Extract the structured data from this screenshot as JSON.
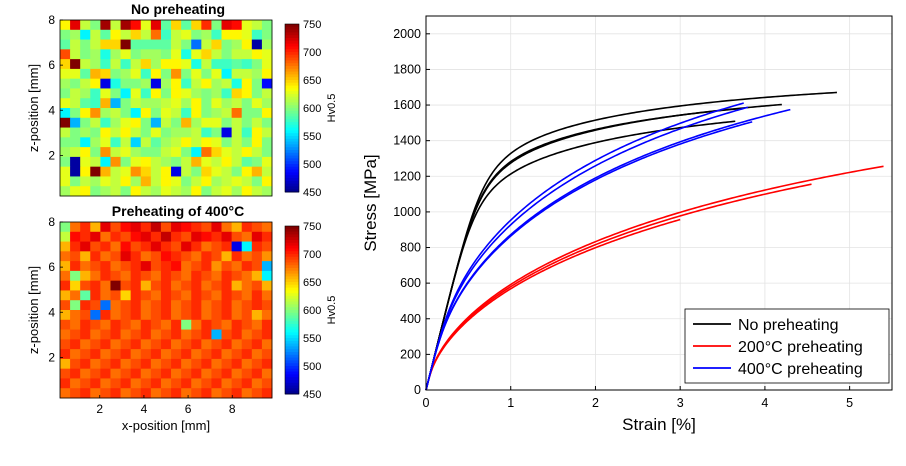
{
  "chart_data": [
    {
      "type": "heatmap",
      "title": "No preheating",
      "xlabel": "",
      "ylabel": "z-position [mm]",
      "xlim": [
        0.2,
        9.8
      ],
      "ylim": [
        0.2,
        8.0
      ],
      "xticks": [],
      "yticks": [
        2,
        4,
        6,
        8
      ],
      "colorbar": {
        "label": "Hv0.5",
        "range": [
          450,
          750
        ],
        "ticks": [
          450,
          500,
          550,
          600,
          650,
          700,
          750
        ]
      },
      "colormap": "jet",
      "grid_shape": [
        18,
        21
      ],
      "values": [
        [
          640,
          720,
          620,
          600,
          740,
          620,
          740,
          710,
          630,
          720,
          590,
          650,
          590,
          650,
          700,
          600,
          720,
          710,
          630,
          620,
          600
        ],
        [
          600,
          610,
          560,
          620,
          590,
          640,
          620,
          650,
          620,
          680,
          580,
          620,
          630,
          600,
          610,
          580,
          640,
          640,
          630,
          580,
          600
        ],
        [
          590,
          620,
          600,
          620,
          650,
          650,
          760,
          590,
          590,
          590,
          590,
          620,
          600,
          520,
          620,
          650,
          600,
          610,
          640,
          460,
          610
        ],
        [
          690,
          620,
          600,
          610,
          570,
          610,
          630,
          600,
          610,
          610,
          600,
          630,
          570,
          630,
          650,
          620,
          600,
          620,
          620,
          640,
          630
        ],
        [
          650,
          760,
          620,
          610,
          580,
          620,
          580,
          620,
          650,
          610,
          640,
          640,
          630,
          570,
          620,
          580,
          580,
          590,
          580,
          600,
          630
        ],
        [
          630,
          630,
          590,
          660,
          650,
          600,
          610,
          630,
          580,
          640,
          600,
          670,
          600,
          630,
          600,
          630,
          560,
          620,
          620,
          610,
          640
        ],
        [
          610,
          600,
          620,
          640,
          480,
          570,
          600,
          600,
          610,
          480,
          610,
          640,
          580,
          620,
          640,
          610,
          620,
          570,
          640,
          600,
          490
        ],
        [
          600,
          620,
          610,
          580,
          630,
          600,
          560,
          630,
          580,
          640,
          600,
          640,
          630,
          610,
          600,
          610,
          580,
          650,
          640,
          600,
          620
        ],
        [
          630,
          620,
          590,
          580,
          660,
          540,
          600,
          620,
          610,
          610,
          620,
          630,
          610,
          640,
          600,
          630,
          610,
          620,
          600,
          630,
          610
        ],
        [
          560,
          600,
          640,
          670,
          610,
          620,
          600,
          560,
          640,
          600,
          630,
          620,
          580,
          640,
          600,
          610,
          620,
          680,
          600,
          600,
          640
        ],
        [
          750,
          540,
          600,
          620,
          580,
          610,
          630,
          640,
          600,
          540,
          620,
          600,
          660,
          610,
          630,
          630,
          600,
          620,
          600,
          620,
          600
        ],
        [
          620,
          600,
          610,
          600,
          640,
          620,
          640,
          620,
          600,
          630,
          600,
          610,
          610,
          620,
          580,
          600,
          480,
          620,
          580,
          640,
          620
        ],
        [
          600,
          600,
          560,
          610,
          630,
          580,
          620,
          550,
          620,
          590,
          610,
          620,
          640,
          620,
          640,
          630,
          600,
          620,
          600,
          640,
          600
        ],
        [
          610,
          620,
          640,
          600,
          670,
          620,
          630,
          610,
          600,
          600,
          620,
          630,
          600,
          560,
          680,
          650,
          630,
          620,
          640,
          620,
          600
        ],
        [
          600,
          460,
          630,
          620,
          560,
          670,
          600,
          630,
          640,
          620,
          610,
          600,
          620,
          660,
          630,
          620,
          640,
          620,
          590,
          600,
          630
        ],
        [
          630,
          460,
          640,
          750,
          660,
          620,
          630,
          670,
          650,
          620,
          640,
          480,
          620,
          600,
          650,
          630,
          620,
          600,
          640,
          660,
          620
        ],
        [
          630,
          600,
          620,
          610,
          630,
          620,
          640,
          610,
          660,
          620,
          640,
          630,
          600,
          620,
          640,
          610,
          620,
          630,
          620,
          600,
          640
        ],
        [
          610,
          630,
          640,
          600,
          610,
          620,
          600,
          640,
          620,
          610,
          630,
          620,
          610,
          640,
          600,
          620,
          630,
          610,
          640,
          620,
          610
        ]
      ]
    },
    {
      "type": "heatmap",
      "title": "Preheating of 400°C",
      "xlabel": "x-position [mm]",
      "ylabel": "z-position [mm]",
      "xlim": [
        0.2,
        9.8
      ],
      "ylim": [
        0.2,
        8.0
      ],
      "xticks": [
        2,
        4,
        6,
        8
      ],
      "yticks": [
        2,
        4,
        6,
        8
      ],
      "colorbar": {
        "label": "Hv0.5",
        "range": [
          450,
          750
        ],
        "ticks": [
          450,
          500,
          550,
          600,
          650,
          700,
          750
        ]
      },
      "colormap": "jet",
      "grid_shape": [
        18,
        21
      ],
      "values": [
        [
          600,
          680,
          700,
          660,
          720,
          690,
          710,
          720,
          700,
          730,
          690,
          720,
          710,
          700,
          690,
          720,
          680,
          660,
          700,
          690,
          680
        ],
        [
          620,
          710,
          700,
          720,
          680,
          700,
          690,
          710,
          720,
          700,
          730,
          700,
          690,
          720,
          710,
          700,
          720,
          690,
          680,
          720,
          700
        ],
        [
          660,
          700,
          720,
          690,
          700,
          680,
          710,
          690,
          700,
          720,
          700,
          690,
          720,
          700,
          680,
          690,
          700,
          480,
          560,
          700,
          690
        ],
        [
          680,
          690,
          660,
          700,
          680,
          690,
          720,
          700,
          680,
          690,
          710,
          700,
          690,
          680,
          700,
          690,
          660,
          700,
          680,
          690,
          670
        ],
        [
          660,
          700,
          680,
          690,
          700,
          680,
          690,
          700,
          720,
          690,
          700,
          710,
          680,
          690,
          700,
          670,
          690,
          680,
          700,
          690,
          540
        ],
        [
          680,
          600,
          660,
          680,
          700,
          690,
          680,
          700,
          690,
          680,
          700,
          690,
          680,
          700,
          690,
          680,
          700,
          690,
          680,
          660,
          560
        ],
        [
          700,
          650,
          690,
          700,
          680,
          760,
          690,
          700,
          660,
          690,
          700,
          680,
          690,
          700,
          680,
          690,
          700,
          660,
          680,
          690,
          660
        ],
        [
          660,
          680,
          590,
          700,
          680,
          690,
          650,
          700,
          690,
          680,
          700,
          690,
          680,
          700,
          690,
          680,
          700,
          690,
          680,
          700,
          680
        ],
        [
          690,
          600,
          700,
          690,
          520,
          680,
          690,
          700,
          680,
          690,
          700,
          680,
          690,
          700,
          680,
          690,
          700,
          680,
          690,
          700,
          690
        ],
        [
          660,
          680,
          690,
          520,
          700,
          680,
          690,
          700,
          680,
          690,
          700,
          680,
          690,
          700,
          680,
          690,
          700,
          680,
          690,
          660,
          680
        ],
        [
          690,
          680,
          700,
          690,
          680,
          700,
          690,
          680,
          700,
          690,
          680,
          700,
          600,
          680,
          700,
          690,
          680,
          700,
          690,
          680,
          700
        ],
        [
          680,
          690,
          700,
          680,
          690,
          700,
          680,
          690,
          700,
          680,
          690,
          700,
          680,
          690,
          700,
          540,
          690,
          700,
          680,
          690,
          700
        ],
        [
          690,
          700,
          680,
          690,
          700,
          680,
          690,
          700,
          680,
          690,
          700,
          680,
          690,
          700,
          680,
          690,
          700,
          680,
          690,
          700,
          680
        ],
        [
          700,
          680,
          690,
          700,
          680,
          690,
          700,
          680,
          690,
          700,
          680,
          690,
          700,
          680,
          690,
          700,
          680,
          690,
          700,
          680,
          690
        ],
        [
          660,
          690,
          700,
          680,
          690,
          700,
          680,
          690,
          700,
          680,
          690,
          700,
          680,
          690,
          700,
          680,
          690,
          700,
          680,
          690,
          700
        ],
        [
          690,
          700,
          680,
          690,
          700,
          680,
          690,
          700,
          680,
          690,
          700,
          680,
          690,
          700,
          680,
          690,
          700,
          680,
          690,
          700,
          680
        ],
        [
          700,
          680,
          690,
          700,
          680,
          690,
          700,
          680,
          690,
          700,
          680,
          690,
          700,
          680,
          690,
          700,
          680,
          690,
          700,
          680,
          690
        ],
        [
          680,
          690,
          700,
          680,
          690,
          700,
          680,
          690,
          700,
          680,
          690,
          700,
          680,
          690,
          700,
          680,
          690,
          700,
          680,
          690,
          700
        ]
      ]
    },
    {
      "type": "line",
      "title": "",
      "xlabel": "Strain [%]",
      "ylabel": "Stress [MPa]",
      "xlim": [
        0,
        5.5
      ],
      "ylim": [
        0,
        2100
      ],
      "xticks": [
        0,
        1,
        2,
        3,
        4,
        5
      ],
      "yticks": [
        0,
        200,
        400,
        600,
        800,
        1000,
        1200,
        1400,
        1600,
        1800,
        2000
      ],
      "grid": true,
      "legend_position": "bottom-right",
      "series": [
        {
          "name": "No preheating",
          "color": "#000000",
          "curves": [
            {
              "E": 1.9,
              "A": 1800,
              "k": 1.4,
              "n": 0.4,
              "end": 4.85
            },
            {
              "E": 1.9,
              "A": 1760,
              "k": 1.35,
              "n": 0.4,
              "end": 3.7
            },
            {
              "E": 1.9,
              "A": 1780,
              "k": 1.3,
              "n": 0.4,
              "end": 4.2
            },
            {
              "E": 1.9,
              "A": 1720,
              "k": 1.25,
              "n": 0.4,
              "end": 3.65
            }
          ]
        },
        {
          "name": "200°C preheating",
          "color": "#ff0000",
          "curves": [
            {
              "E": 1.95,
              "A": 1960,
              "k": 0.36,
              "n": 0.62,
              "end": 5.4
            },
            {
              "E": 1.95,
              "A": 1920,
              "k": 0.36,
              "n": 0.62,
              "end": 4.55
            },
            {
              "E": 1.95,
              "A": 1880,
              "k": 0.36,
              "n": 0.62,
              "end": 3.0
            }
          ]
        },
        {
          "name": "400°C preheating",
          "color": "#0000ff",
          "curves": [
            {
              "E": 1.9,
              "A": 2260,
              "k": 0.55,
              "n": 0.62,
              "end": 3.75
            },
            {
              "E": 1.9,
              "A": 2260,
              "k": 0.53,
              "n": 0.62,
              "end": 3.8
            },
            {
              "E": 1.9,
              "A": 2220,
              "k": 0.5,
              "n": 0.62,
              "end": 4.3
            },
            {
              "E": 1.9,
              "A": 2200,
              "k": 0.5,
              "n": 0.62,
              "end": 3.85
            }
          ]
        }
      ]
    }
  ]
}
